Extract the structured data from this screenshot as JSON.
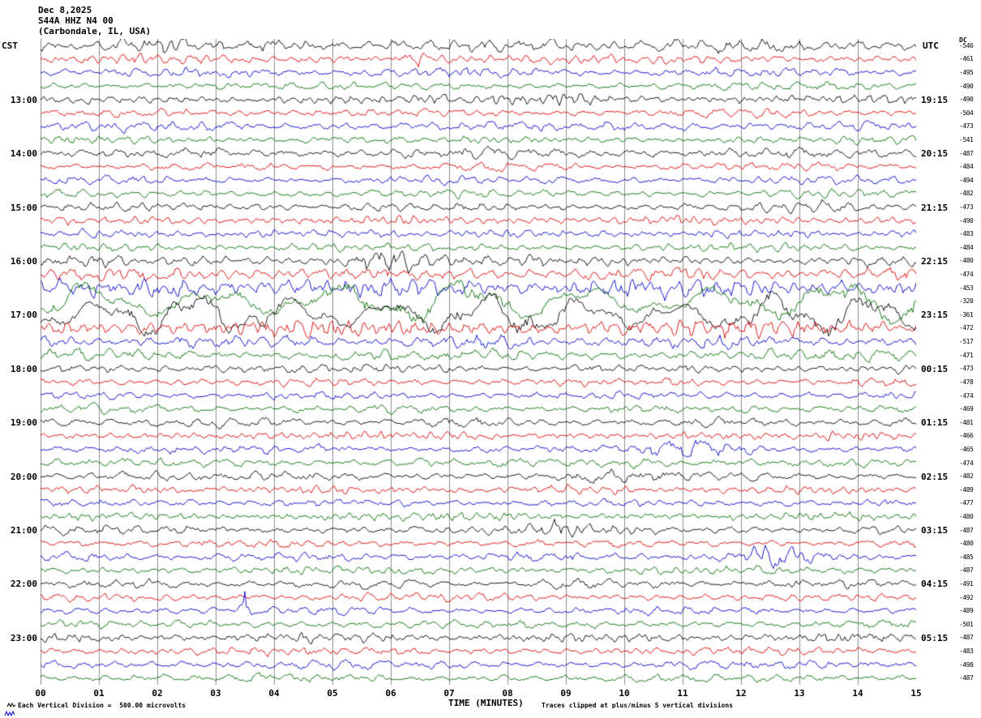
{
  "header": {
    "date": "Dec 8,2025",
    "station": "S44A HHZ N4 00",
    "location": "(Carbondale, IL, USA)",
    "left_tz": "CST",
    "right_tz": "UTC",
    "dc_label": "DC"
  },
  "footer": {
    "xlabel": "TIME (MINUTES)",
    "scale_note": "Each Vertical Division =  500.00 microvolts",
    "clip_note": "Traces clipped at plus/minus 5 vertical divisions"
  },
  "chart_data": {
    "type": "line",
    "title": "S44A HHZ N4 00 (Carbondale, IL, USA) Dec 8,2025",
    "xlabel": "TIME (MINUTES)",
    "x_range_minutes": [
      0,
      15
    ],
    "x_ticks": [
      "00",
      "01",
      "02",
      "03",
      "04",
      "05",
      "06",
      "07",
      "08",
      "09",
      "10",
      "11",
      "12",
      "13",
      "14",
      "15"
    ],
    "minutes_per_row": 15,
    "left_axis": "CST",
    "right_axis": "UTC",
    "grid": "vertical-minute-lines",
    "trace_color_cycle": [
      "black",
      "red",
      "blue",
      "green"
    ],
    "colors": {
      "black": "#000000",
      "red": "#dd0000",
      "blue": "#0000cc",
      "green": "#006e00",
      "grid": "#8c8c8c"
    },
    "rows": [
      {
        "cst": "",
        "utc": "",
        "dc": "-546",
        "color": "black",
        "amp": 5.0,
        "events": [
          {
            "m": 1.6,
            "g": 1.8,
            "w": 0.6
          }
        ]
      },
      {
        "cst": "",
        "utc": "",
        "dc": "-461",
        "color": "red",
        "amp": 3.5,
        "events": [
          {
            "m": 6.4,
            "g": 2.2,
            "w": 0.25
          }
        ]
      },
      {
        "cst": "",
        "utc": "",
        "dc": "-495",
        "color": "blue",
        "amp": 3.5,
        "events": []
      },
      {
        "cst": "",
        "utc": "",
        "dc": "-490",
        "color": "green",
        "amp": 3.0,
        "events": []
      },
      {
        "cst": "13:00",
        "utc": "19:15",
        "dc": "-490",
        "color": "black",
        "amp": 3.5,
        "events": [
          {
            "m": 9.3,
            "g": 2.6,
            "w": 0.35
          }
        ]
      },
      {
        "cst": "",
        "utc": "",
        "dc": "-504",
        "color": "red",
        "amp": 3.2,
        "events": []
      },
      {
        "cst": "",
        "utc": "",
        "dc": "-473",
        "color": "blue",
        "amp": 3.8,
        "events": []
      },
      {
        "cst": "",
        "utc": "",
        "dc": "-541",
        "color": "green",
        "amp": 3.0,
        "events": []
      },
      {
        "cst": "14:00",
        "utc": "20:15",
        "dc": "-487",
        "color": "black",
        "amp": 4.0,
        "events": []
      },
      {
        "cst": "",
        "utc": "",
        "dc": "-484",
        "color": "red",
        "amp": 3.2,
        "events": []
      },
      {
        "cst": "",
        "utc": "",
        "dc": "-494",
        "color": "blue",
        "amp": 3.2,
        "events": []
      },
      {
        "cst": "",
        "utc": "",
        "dc": "-482",
        "color": "green",
        "amp": 3.2,
        "events": []
      },
      {
        "cst": "15:00",
        "utc": "21:15",
        "dc": "-473",
        "color": "black",
        "amp": 3.2,
        "events": [
          {
            "m": 13.6,
            "g": 2.2,
            "w": 0.2
          }
        ]
      },
      {
        "cst": "",
        "utc": "",
        "dc": "-490",
        "color": "red",
        "amp": 3.2,
        "events": []
      },
      {
        "cst": "",
        "utc": "",
        "dc": "-483",
        "color": "blue",
        "amp": 3.2,
        "events": []
      },
      {
        "cst": "",
        "utc": "",
        "dc": "-484",
        "color": "green",
        "amp": 3.2,
        "events": []
      },
      {
        "cst": "16:00",
        "utc": "22:15",
        "dc": "-480",
        "color": "black",
        "amp": 4.0,
        "events": [
          {
            "m": 5.9,
            "g": 3.2,
            "w": 0.45
          }
        ]
      },
      {
        "cst": "",
        "utc": "",
        "dc": "-474",
        "color": "red",
        "amp": 5.0,
        "events": []
      },
      {
        "cst": "",
        "utc": "",
        "dc": "-453",
        "color": "blue",
        "amp": 7.5,
        "events": []
      },
      {
        "cst": "",
        "utc": "",
        "dc": "-320",
        "color": "green",
        "amp": 13.0,
        "events": []
      },
      {
        "cst": "17:00",
        "utc": "23:15",
        "dc": "-361",
        "color": "black",
        "amp": 13.0,
        "events": []
      },
      {
        "cst": "",
        "utc": "",
        "dc": "-472",
        "color": "red",
        "amp": 6.5,
        "events": []
      },
      {
        "cst": "",
        "utc": "",
        "dc": "-517",
        "color": "blue",
        "amp": 5.0,
        "events": []
      },
      {
        "cst": "",
        "utc": "",
        "dc": "-471",
        "color": "green",
        "amp": 4.5,
        "events": []
      },
      {
        "cst": "18:00",
        "utc": "00:15",
        "dc": "-473",
        "color": "black",
        "amp": 3.6,
        "events": []
      },
      {
        "cst": "",
        "utc": "",
        "dc": "-478",
        "color": "red",
        "amp": 3.2,
        "events": []
      },
      {
        "cst": "",
        "utc": "",
        "dc": "-474",
        "color": "blue",
        "amp": 3.2,
        "events": []
      },
      {
        "cst": "",
        "utc": "",
        "dc": "-469",
        "color": "green",
        "amp": 3.4,
        "events": []
      },
      {
        "cst": "19:00",
        "utc": "01:15",
        "dc": "-481",
        "color": "black",
        "amp": 3.6,
        "events": []
      },
      {
        "cst": "",
        "utc": "",
        "dc": "-466",
        "color": "red",
        "amp": 3.2,
        "events": []
      },
      {
        "cst": "",
        "utc": "",
        "dc": "-465",
        "color": "blue",
        "amp": 3.4,
        "events": [
          {
            "m": 11.2,
            "g": 2.6,
            "w": 0.5
          }
        ]
      },
      {
        "cst": "",
        "utc": "",
        "dc": "-474",
        "color": "green",
        "amp": 3.4,
        "events": [
          {
            "m": 10.4,
            "g": 2.2,
            "w": 0.3
          }
        ]
      },
      {
        "cst": "20:00",
        "utc": "02:15",
        "dc": "-482",
        "color": "black",
        "amp": 3.6,
        "events": [
          {
            "m": 9.6,
            "g": 2.0,
            "w": 0.3
          }
        ]
      },
      {
        "cst": "",
        "utc": "",
        "dc": "-489",
        "color": "red",
        "amp": 3.2,
        "events": []
      },
      {
        "cst": "",
        "utc": "",
        "dc": "-477",
        "color": "blue",
        "amp": 3.2,
        "events": []
      },
      {
        "cst": "",
        "utc": "",
        "dc": "-480",
        "color": "green",
        "amp": 3.2,
        "events": []
      },
      {
        "cst": "21:00",
        "utc": "03:15",
        "dc": "-487",
        "color": "black",
        "amp": 3.6,
        "events": [
          {
            "m": 8.9,
            "g": 1.9,
            "w": 0.25
          }
        ]
      },
      {
        "cst": "",
        "utc": "",
        "dc": "-480",
        "color": "red",
        "amp": 3.2,
        "events": []
      },
      {
        "cst": "",
        "utc": "",
        "dc": "-485",
        "color": "blue",
        "amp": 3.4,
        "events": [
          {
            "m": 12.5,
            "g": 3.0,
            "w": 0.45
          }
        ]
      },
      {
        "cst": "",
        "utc": "",
        "dc": "-487",
        "color": "green",
        "amp": 3.2,
        "events": []
      },
      {
        "cst": "22:00",
        "utc": "04:15",
        "dc": "-491",
        "color": "black",
        "amp": 3.6,
        "events": []
      },
      {
        "cst": "",
        "utc": "",
        "dc": "-492",
        "color": "red",
        "amp": 3.2,
        "events": []
      },
      {
        "cst": "",
        "utc": "",
        "dc": "-489",
        "color": "blue",
        "amp": 3.2,
        "events": [
          {
            "m": 3.5,
            "g": 5.0,
            "w": 0.06
          }
        ]
      },
      {
        "cst": "",
        "utc": "",
        "dc": "-501",
        "color": "green",
        "amp": 3.2,
        "events": []
      },
      {
        "cst": "23:00",
        "utc": "05:15",
        "dc": "-487",
        "color": "black",
        "amp": 3.4,
        "events": []
      },
      {
        "cst": "",
        "utc": "",
        "dc": "-483",
        "color": "red",
        "amp": 3.2,
        "events": []
      },
      {
        "cst": "",
        "utc": "",
        "dc": "-498",
        "color": "blue",
        "amp": 3.4,
        "events": []
      },
      {
        "cst": "",
        "utc": "",
        "dc": "-487",
        "color": "green",
        "amp": 3.2,
        "events": []
      }
    ]
  }
}
